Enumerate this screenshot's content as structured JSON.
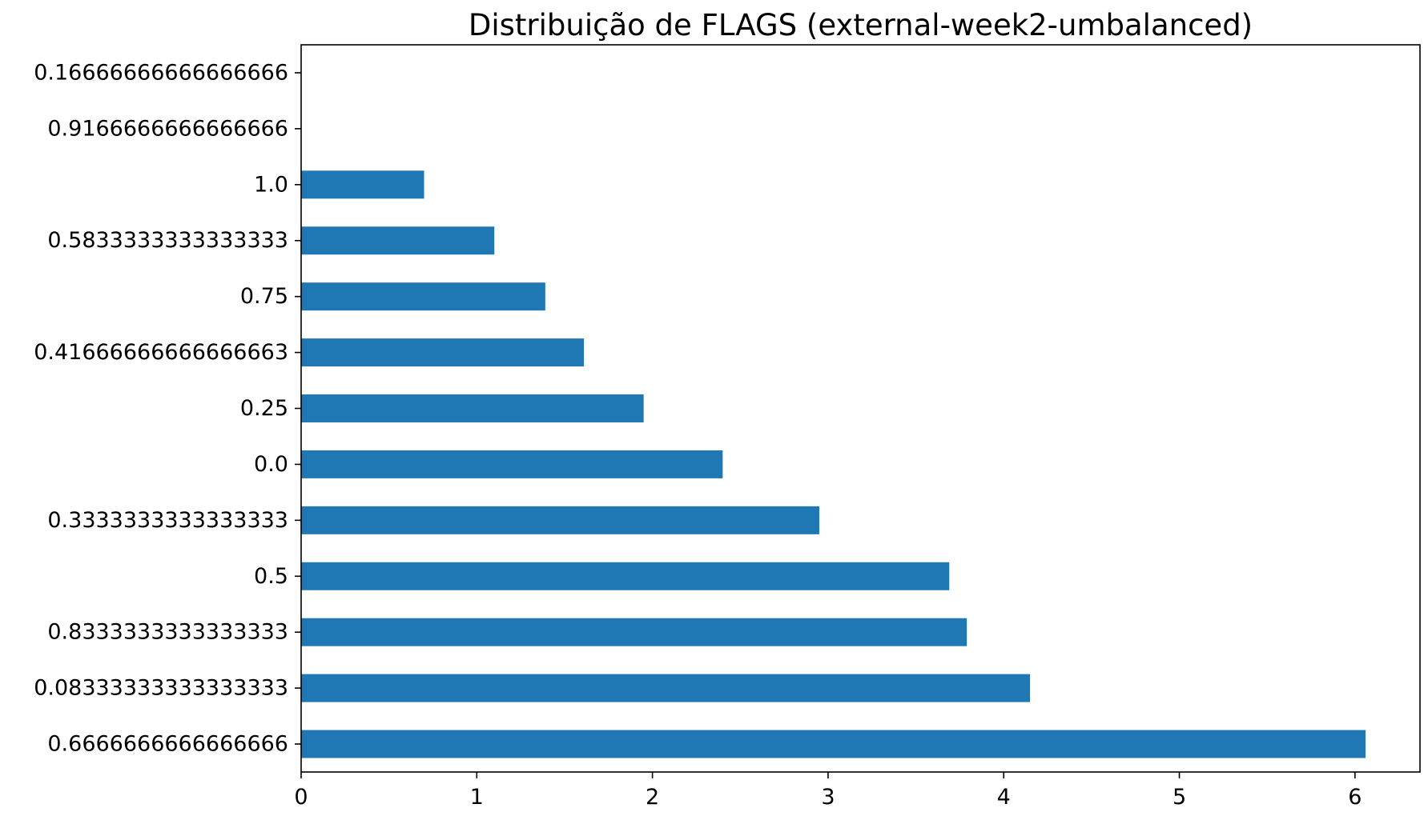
{
  "chart_data": {
    "type": "bar",
    "orientation": "horizontal",
    "title": "Distribuição de FLAGS (external-week2-umbalanced)",
    "xlabel": "",
    "ylabel": "",
    "categories": [
      "0.6666666666666666",
      "0.08333333333333333",
      "0.8333333333333333",
      "0.5",
      "0.3333333333333333",
      "0.0",
      "0.25",
      "0.41666666666666663",
      "0.75",
      "0.5833333333333333",
      "1.0",
      "0.9166666666666666",
      "0.16666666666666666"
    ],
    "values": [
      6.06,
      4.15,
      3.79,
      3.69,
      2.95,
      2.4,
      1.95,
      1.61,
      1.39,
      1.1,
      0.7,
      0,
      0
    ],
    "xlim": [
      0,
      6.37
    ],
    "xticks": [
      "0",
      "1",
      "2",
      "3",
      "4",
      "5",
      "6"
    ],
    "grid": false,
    "legend": "none",
    "bar_color": "#1f77b4"
  }
}
